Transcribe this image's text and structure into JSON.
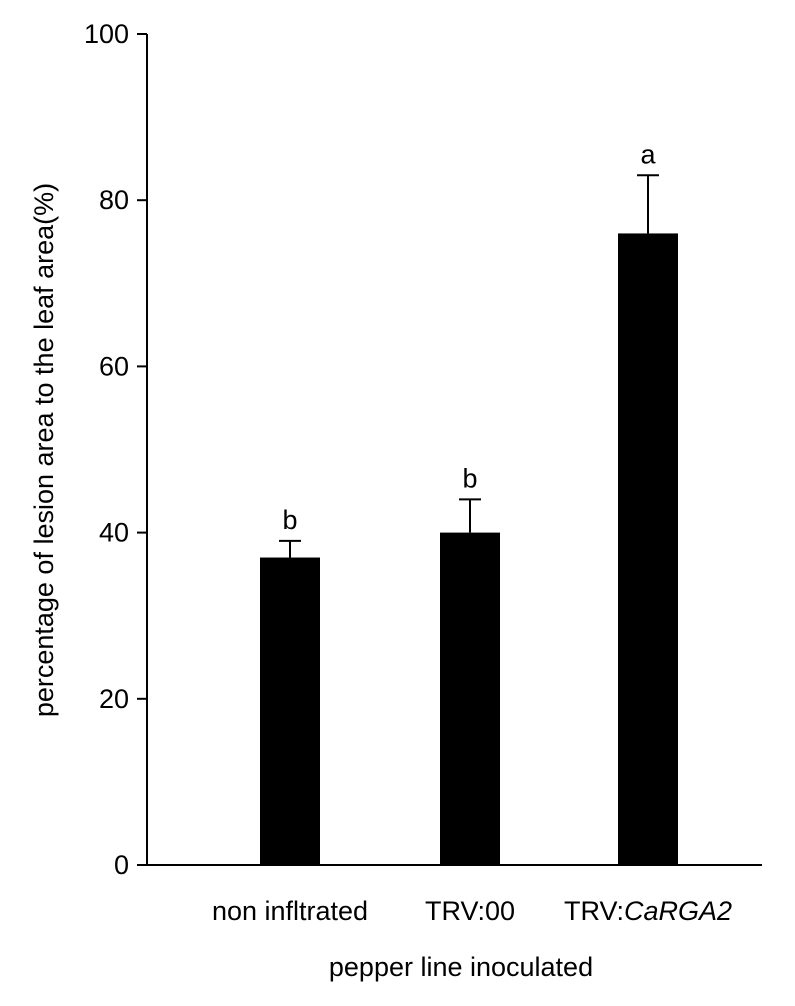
{
  "chart_data": {
    "type": "bar",
    "categories": [
      {
        "label": "non infltrated",
        "italic_part": ""
      },
      {
        "label": "TRV:00",
        "italic_part": ""
      },
      {
        "label": "TRV:",
        "italic_part": "CaRGA2"
      }
    ],
    "values": [
      37,
      40,
      76
    ],
    "errors": [
      2,
      4,
      7
    ],
    "significance": [
      "b",
      "b",
      "a"
    ],
    "xlabel": "pepper line inoculated",
    "ylabel": "percentage of lesion area to the leaf area(%)",
    "ylim": [
      0,
      100
    ],
    "yticks": [
      0,
      20,
      40,
      60,
      80,
      100
    ],
    "grid": false,
    "bar_color": "#000000"
  }
}
